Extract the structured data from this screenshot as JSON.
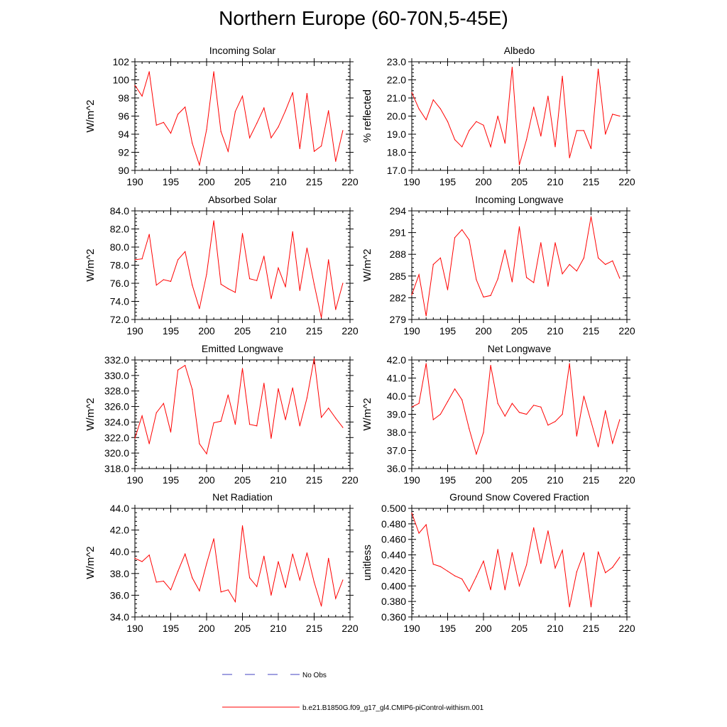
{
  "title": "Northern Europe (60-70N,5-45E)",
  "legend": {
    "obs_label": "No Obs",
    "model_label": "b.e21.B1850G.f09_g17_gl4.CMIP6-piControl-withism.001",
    "obs_color": "#4040c0",
    "model_color": "#ff0000"
  },
  "chart_data": [
    {
      "type": "line",
      "title": "Incoming Solar",
      "ylabel": "W/m^2",
      "xlabel": "",
      "xlim": [
        190,
        220
      ],
      "ylim": [
        90,
        102
      ],
      "xticks": [
        190,
        195,
        200,
        205,
        210,
        215,
        220
      ],
      "yticks": [
        90,
        92,
        94,
        96,
        98,
        100,
        102
      ],
      "ytick_labels": [
        "90",
        "92",
        "94",
        "96",
        "98",
        "100",
        "102"
      ],
      "x": [
        190,
        191,
        192,
        193,
        194,
        195,
        196,
        197,
        198,
        199,
        200,
        201,
        202,
        203,
        204,
        205,
        206,
        207,
        208,
        209,
        210,
        211,
        212,
        213,
        214,
        215,
        216,
        217,
        218,
        219
      ],
      "series": [
        {
          "name": "b.e21.B1850G.f09_g17_gl4.CMIP6-piControl-withism.001",
          "values": [
            99.4,
            98.2,
            100.9,
            95.0,
            95.3,
            94.1,
            96.2,
            97.0,
            93.0,
            90.6,
            94.5,
            100.9,
            94.3,
            92.1,
            96.5,
            98.2,
            93.6,
            95.2,
            96.9,
            93.6,
            94.8,
            96.6,
            98.6,
            92.4,
            98.5,
            92.1,
            92.7,
            96.6,
            91.0,
            94.4
          ]
        }
      ]
    },
    {
      "type": "line",
      "title": "Albedo",
      "ylabel": "% reflected",
      "xlabel": "",
      "xlim": [
        190,
        220
      ],
      "ylim": [
        17,
        23
      ],
      "xticks": [
        190,
        195,
        200,
        205,
        210,
        215,
        220
      ],
      "yticks": [
        17,
        18,
        19,
        20,
        21,
        22,
        23
      ],
      "ytick_labels": [
        "17.0",
        "18.0",
        "19.0",
        "20.0",
        "21.0",
        "22.0",
        "23.0"
      ],
      "x": [
        190,
        191,
        192,
        193,
        194,
        195,
        196,
        197,
        198,
        199,
        200,
        201,
        202,
        203,
        204,
        205,
        206,
        207,
        208,
        209,
        210,
        211,
        212,
        213,
        214,
        215,
        216,
        217,
        218,
        219
      ],
      "series": [
        {
          "name": "b.e21.B1850G.f09_g17_gl4.CMIP6-piControl-withism.001",
          "values": [
            21.3,
            20.4,
            19.8,
            20.9,
            20.4,
            19.7,
            18.7,
            18.3,
            19.2,
            19.7,
            19.5,
            18.3,
            20.0,
            18.5,
            22.7,
            17.3,
            18.7,
            20.5,
            18.9,
            21.1,
            18.3,
            22.2,
            17.7,
            19.2,
            19.2,
            18.2,
            22.6,
            19.0,
            20.1,
            20.0
          ]
        }
      ]
    },
    {
      "type": "line",
      "title": "Absorbed Solar",
      "ylabel": "W/m^2",
      "xlabel": "",
      "xlim": [
        190,
        220
      ],
      "ylim": [
        72,
        84
      ],
      "xticks": [
        190,
        195,
        200,
        205,
        210,
        215,
        220
      ],
      "yticks": [
        72,
        74,
        76,
        78,
        80,
        82,
        84
      ],
      "ytick_labels": [
        "72.0",
        "74.0",
        "76.0",
        "78.0",
        "80.0",
        "82.0",
        "84.0"
      ],
      "x": [
        190,
        191,
        192,
        193,
        194,
        195,
        196,
        197,
        198,
        199,
        200,
        201,
        202,
        203,
        204,
        205,
        206,
        207,
        208,
        209,
        210,
        211,
        212,
        213,
        214,
        215,
        216,
        217,
        218,
        219
      ],
      "series": [
        {
          "name": "b.e21.B1850G.f09_g17_gl4.CMIP6-piControl-withism.001",
          "values": [
            78.6,
            78.7,
            81.4,
            75.8,
            76.4,
            76.2,
            78.6,
            79.5,
            75.8,
            73.2,
            77.0,
            82.9,
            75.9,
            75.4,
            75.0,
            81.5,
            76.5,
            76.3,
            79.0,
            74.3,
            77.7,
            75.6,
            81.7,
            75.2,
            79.9,
            75.9,
            72.2,
            78.6,
            73.1,
            76.0
          ]
        }
      ]
    },
    {
      "type": "line",
      "title": "Incoming Longwave",
      "ylabel": "W/m^2",
      "xlabel": "",
      "xlim": [
        190,
        220
      ],
      "ylim": [
        279,
        294
      ],
      "xticks": [
        190,
        195,
        200,
        205,
        210,
        215,
        220
      ],
      "yticks": [
        279,
        282,
        285,
        288,
        291,
        294
      ],
      "ytick_labels": [
        "279",
        "282",
        "285",
        "288",
        "291",
        "294"
      ],
      "x": [
        190,
        191,
        192,
        193,
        194,
        195,
        196,
        197,
        198,
        199,
        200,
        201,
        202,
        203,
        204,
        205,
        206,
        207,
        208,
        209,
        210,
        211,
        212,
        213,
        214,
        215,
        216,
        217,
        218,
        219
      ],
      "series": [
        {
          "name": "b.e21.B1850G.f09_g17_gl4.CMIP6-piControl-withism.001",
          "values": [
            282.4,
            285.2,
            279.5,
            286.6,
            287.5,
            283.1,
            290.3,
            291.4,
            290.0,
            284.5,
            282.1,
            282.3,
            284.6,
            288.6,
            284.2,
            291.8,
            284.8,
            284.1,
            289.6,
            283.6,
            289.6,
            285.3,
            286.6,
            285.7,
            287.5,
            293.2,
            287.5,
            286.6,
            287.1,
            284.7
          ]
        }
      ]
    },
    {
      "type": "line",
      "title": "Emitted Longwave",
      "ylabel": "W/m^2",
      "xlabel": "",
      "xlim": [
        190,
        220
      ],
      "ylim": [
        318,
        332
      ],
      "xticks": [
        190,
        195,
        200,
        205,
        210,
        215,
        220
      ],
      "yticks": [
        318,
        320,
        322,
        324,
        326,
        328,
        330,
        332
      ],
      "ytick_labels": [
        "318.0",
        "320.0",
        "322.0",
        "324.0",
        "326.0",
        "328.0",
        "330.0",
        "332.0"
      ],
      "x": [
        190,
        191,
        192,
        193,
        194,
        195,
        196,
        197,
        198,
        199,
        200,
        201,
        202,
        203,
        204,
        205,
        206,
        207,
        208,
        209,
        210,
        211,
        212,
        213,
        214,
        215,
        216,
        217,
        218,
        219
      ],
      "series": [
        {
          "name": "b.e21.B1850G.f09_g17_gl4.CMIP6-piControl-withism.001",
          "values": [
            321.9,
            324.8,
            321.2,
            325.2,
            326.4,
            322.7,
            330.7,
            331.3,
            328.2,
            321.2,
            319.9,
            323.9,
            324.1,
            327.5,
            323.7,
            330.9,
            323.7,
            323.5,
            329.0,
            321.9,
            328.3,
            324.3,
            328.4,
            323.5,
            327.1,
            332.2,
            324.6,
            325.8,
            324.5,
            323.3
          ]
        }
      ]
    },
    {
      "type": "line",
      "title": "Net Longwave",
      "ylabel": "W/m^2",
      "xlabel": "",
      "xlim": [
        190,
        220
      ],
      "ylim": [
        36,
        42
      ],
      "xticks": [
        190,
        195,
        200,
        205,
        210,
        215,
        220
      ],
      "yticks": [
        36,
        37,
        38,
        39,
        40,
        41,
        42
      ],
      "ytick_labels": [
        "36.0",
        "37.0",
        "38.0",
        "39.0",
        "40.0",
        "41.0",
        "42.0"
      ],
      "x": [
        190,
        191,
        192,
        193,
        194,
        195,
        196,
        197,
        198,
        199,
        200,
        201,
        202,
        203,
        204,
        205,
        206,
        207,
        208,
        209,
        210,
        211,
        212,
        213,
        214,
        215,
        216,
        217,
        218,
        219
      ],
      "series": [
        {
          "name": "b.e21.B1850G.f09_g17_gl4.CMIP6-piControl-withism.001",
          "values": [
            39.4,
            39.6,
            41.8,
            38.7,
            39.0,
            39.7,
            40.4,
            39.8,
            38.2,
            36.8,
            38.0,
            41.7,
            39.6,
            38.9,
            39.6,
            39.1,
            39.0,
            39.5,
            39.4,
            38.4,
            38.6,
            39.0,
            41.8,
            37.8,
            40.0,
            38.6,
            37.2,
            39.2,
            37.4,
            38.7
          ]
        }
      ]
    },
    {
      "type": "line",
      "title": "Net Radiation",
      "ylabel": "W/m^2",
      "xlabel": "",
      "xlim": [
        190,
        220
      ],
      "ylim": [
        34,
        44
      ],
      "xticks": [
        190,
        195,
        200,
        205,
        210,
        215,
        220
      ],
      "yticks": [
        34,
        36,
        38,
        40,
        42,
        44
      ],
      "ytick_labels": [
        "34.0",
        "36.0",
        "38.0",
        "40.0",
        "42.0",
        "44.0"
      ],
      "x": [
        190,
        191,
        192,
        193,
        194,
        195,
        196,
        197,
        198,
        199,
        200,
        201,
        202,
        203,
        204,
        205,
        206,
        207,
        208,
        209,
        210,
        211,
        212,
        213,
        214,
        215,
        216,
        217,
        218,
        219
      ],
      "series": [
        {
          "name": "b.e21.B1850G.f09_g17_gl4.CMIP6-piControl-withism.001",
          "values": [
            39.4,
            39.1,
            39.7,
            37.2,
            37.3,
            36.5,
            38.2,
            39.8,
            37.6,
            36.4,
            38.9,
            41.2,
            36.3,
            36.5,
            35.4,
            42.4,
            37.6,
            36.8,
            39.6,
            36.0,
            39.1,
            36.7,
            39.8,
            37.4,
            39.9,
            37.2,
            35.0,
            39.4,
            35.7,
            37.4
          ]
        }
      ]
    },
    {
      "type": "line",
      "title": "Ground Snow Covered Fraction",
      "ylabel": "unitless",
      "xlabel": "",
      "xlim": [
        190,
        220
      ],
      "ylim": [
        0.36,
        0.5
      ],
      "xticks": [
        190,
        195,
        200,
        205,
        210,
        215,
        220
      ],
      "yticks": [
        0.36,
        0.38,
        0.4,
        0.42,
        0.44,
        0.46,
        0.48,
        0.5
      ],
      "ytick_labels": [
        "0.360",
        "0.380",
        "0.400",
        "0.420",
        "0.440",
        "0.460",
        "0.480",
        "0.500"
      ],
      "x": [
        190,
        191,
        192,
        193,
        194,
        195,
        196,
        197,
        198,
        199,
        200,
        201,
        202,
        203,
        204,
        205,
        206,
        207,
        208,
        209,
        210,
        211,
        212,
        213,
        214,
        215,
        216,
        217,
        218,
        219
      ],
      "series": [
        {
          "name": "b.e21.B1850G.f09_g17_gl4.CMIP6-piControl-withism.001",
          "values": [
            0.494,
            0.468,
            0.479,
            0.428,
            0.425,
            0.419,
            0.413,
            0.409,
            0.393,
            0.412,
            0.432,
            0.395,
            0.447,
            0.395,
            0.443,
            0.4,
            0.427,
            0.475,
            0.429,
            0.471,
            0.423,
            0.446,
            0.373,
            0.418,
            0.443,
            0.373,
            0.444,
            0.417,
            0.424,
            0.437
          ]
        }
      ]
    }
  ]
}
